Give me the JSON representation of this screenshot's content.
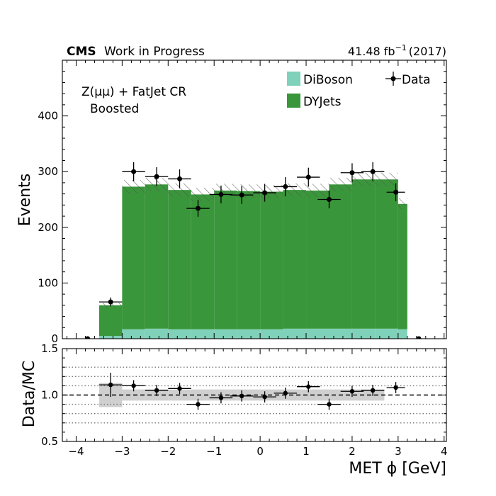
{
  "header": {
    "experiment": "CMS",
    "status": "Work in Progress",
    "lumi": "41.48 fb",
    "lumi_exp": "−1",
    "year": "(2017)"
  },
  "region": {
    "line1": "Z(μμ) + FatJet CR",
    "line2": "Boosted"
  },
  "legend": {
    "diboson": "DiBoson",
    "dyjets": "DYJets",
    "data": "Data",
    "placement": "top-right"
  },
  "colors": {
    "diboson": "#7fd1b9",
    "dyjets": "#3a963a",
    "data": "#000000",
    "unc_band": "#cfcfcf"
  },
  "chart_data": [
    {
      "type": "bar",
      "stacked": true,
      "ylabel": "Events",
      "xlim": [
        -4.3,
        4.05
      ],
      "ylim": [
        0,
        500
      ],
      "yticks": [
        0,
        100,
        200,
        300,
        400
      ],
      "bin_edges": [
        -3.5,
        -3.0,
        -2.5,
        -2.0,
        -1.5,
        -1.0,
        -0.5,
        0.0,
        0.5,
        1.0,
        1.5,
        2.0,
        2.5,
        3.0,
        3.2
      ],
      "series": [
        {
          "name": "DiBoson",
          "values": [
            5,
            17,
            18,
            17,
            17,
            17,
            17,
            17,
            18,
            18,
            18,
            18,
            18,
            17
          ]
        },
        {
          "name": "DYJets",
          "values": [
            55,
            256,
            259,
            250,
            242,
            249,
            248,
            247,
            249,
            248,
            259,
            268,
            268,
            225
          ]
        }
      ],
      "mc_total": [
        60,
        273,
        277,
        267,
        259,
        266,
        265,
        264,
        267,
        266,
        277,
        286,
        286,
        242
      ],
      "mc_unc": [
        4,
        12,
        12,
        12,
        12,
        12,
        12,
        12,
        12,
        12,
        12,
        12,
        12,
        10
      ],
      "data": {
        "name": "Data",
        "x": [
          -3.75,
          -3.25,
          -2.75,
          -2.25,
          -1.75,
          -1.35,
          -0.85,
          -0.4,
          0.1,
          0.55,
          1.05,
          1.5,
          2.0,
          2.45,
          2.95,
          3.45
        ],
        "y": [
          0,
          66,
          300,
          291,
          287,
          234,
          259,
          258,
          262,
          273,
          290,
          250,
          298,
          300,
          263,
          0
        ],
        "yerr": [
          0,
          8,
          17,
          17,
          17,
          15,
          16,
          16,
          16,
          17,
          17,
          16,
          17,
          17,
          16,
          0
        ],
        "xerr": [
          0,
          0.25,
          0.25,
          0.25,
          0.25,
          0.25,
          0.25,
          0.25,
          0.25,
          0.25,
          0.25,
          0.25,
          0.25,
          0.25,
          0.2,
          0
        ]
      }
    },
    {
      "type": "scatter",
      "ylabel": "Data/MC",
      "xlabel": "MET ϕ [GeV]",
      "xlim": [
        -4.3,
        4.05
      ],
      "ylim": [
        0.5,
        1.5
      ],
      "xticks": [
        -4,
        -3,
        -2,
        -1,
        0,
        1,
        2,
        3,
        4
      ],
      "yticks": [
        0.5,
        1.0,
        1.5
      ],
      "reference_line": 1.0,
      "dotted_lines": [
        0.7,
        0.8,
        0.9,
        1.1,
        1.2,
        1.3
      ],
      "x": [
        -3.25,
        -2.75,
        -2.25,
        -1.75,
        -1.35,
        -0.85,
        -0.4,
        0.1,
        0.55,
        1.05,
        1.5,
        2.0,
        2.45,
        2.95
      ],
      "y": [
        1.11,
        1.1,
        1.05,
        1.07,
        0.9,
        0.97,
        0.99,
        0.98,
        1.02,
        1.09,
        0.9,
        1.04,
        1.05,
        1.08
      ],
      "yerr": [
        0.13,
        0.06,
        0.06,
        0.06,
        0.06,
        0.06,
        0.06,
        0.06,
        0.06,
        0.06,
        0.06,
        0.06,
        0.06,
        0.06
      ],
      "xerr": [
        0.25,
        0.25,
        0.25,
        0.25,
        0.25,
        0.25,
        0.25,
        0.25,
        0.25,
        0.25,
        0.25,
        0.25,
        0.25,
        0.2
      ],
      "band_edges": [
        -3.5,
        -3.0,
        -2.5,
        -2.0,
        -1.5,
        -1.0,
        -0.5,
        0.0,
        0.5,
        1.0,
        1.5,
        2.0,
        2.7
      ],
      "band_low": [
        0.87,
        0.94,
        0.94,
        0.94,
        0.94,
        0.94,
        0.94,
        0.94,
        0.94,
        0.94,
        0.94,
        0.94
      ],
      "band_high": [
        1.13,
        1.06,
        1.06,
        1.06,
        1.06,
        1.06,
        1.06,
        1.06,
        1.06,
        1.06,
        1.06,
        1.06
      ]
    }
  ]
}
